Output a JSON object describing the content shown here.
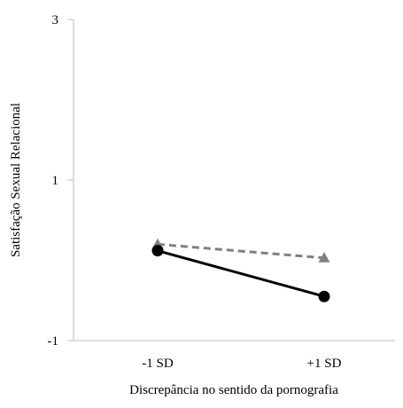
{
  "chart_data": {
    "type": "line",
    "title": "",
    "xlabel": "Discrepância no sentido da pornografia",
    "ylabel": "Satisfação Sexual Relacional",
    "categories": [
      "-1 SD",
      "+1 SD"
    ],
    "ylim": [
      -1,
      3
    ],
    "yticks": [
      "3",
      "1",
      "-1"
    ],
    "grid": false,
    "legend": "none",
    "series": [
      {
        "values": [
          0.2,
          0.03
        ],
        "style": "dashed",
        "marker": "triangle",
        "color": "#808080"
      },
      {
        "values": [
          0.12,
          -0.45
        ],
        "style": "solid",
        "marker": "circle",
        "color": "#000000"
      }
    ]
  }
}
